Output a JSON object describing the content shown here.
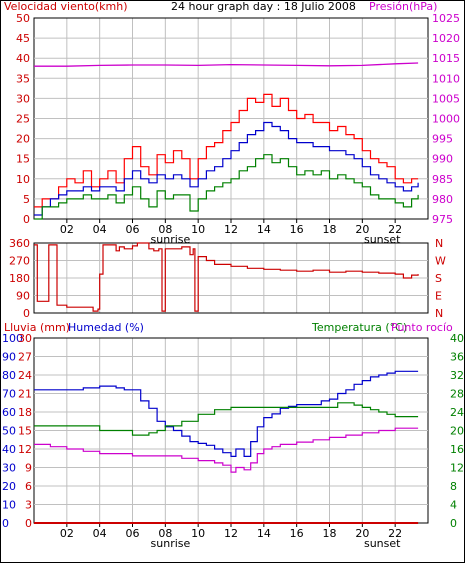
{
  "header": {
    "left_label": "Velocidad viento(kmh)",
    "title": "24 hour graph day : 18 Julio 2008",
    "right_label": "Presión(hPa)"
  },
  "x_axis": {
    "tick_labels": [
      "02",
      "04",
      "06",
      "08",
      "10",
      "12",
      "14",
      "16",
      "18",
      "20",
      "22"
    ],
    "sunrise_label": "sunrise",
    "sunset_label": "sunset"
  },
  "colors": {
    "wind_gust": "#ff0000",
    "wind_avg": "#0000cc",
    "wind_low": "#008000",
    "pressure": "#cc00cc",
    "direction": "#cc0000",
    "humidity": "#0000cc",
    "temperature": "#008000",
    "dewpoint": "#cc00cc",
    "rain": "#cc0000",
    "grid": "#c0c0c0",
    "left_axis": "#cc0000",
    "pressure_axis": "#cc00cc",
    "humidity_axis": "#0000cc",
    "temp_axis": "#008000"
  },
  "chart_data": [
    {
      "type": "line",
      "name": "wind-pressure",
      "x_unit": "hour",
      "x_range": [
        0,
        24
      ],
      "left_axis": {
        "label": "Velocidad viento(kmh)",
        "range": [
          0,
          50
        ],
        "ticks": [
          "0",
          "5",
          "10",
          "15",
          "20",
          "25",
          "30",
          "35",
          "40",
          "45",
          "50"
        ]
      },
      "right_axis": {
        "label": "Presión(hPa)",
        "range": [
          975,
          1025
        ],
        "ticks": [
          "975",
          "980",
          "985",
          "990",
          "995",
          "1000",
          "1005",
          "1010",
          "1015",
          "1020",
          "1025"
        ]
      },
      "grid": true,
      "series": [
        {
          "key": "gust",
          "axis": "left",
          "x": [
            0,
            0.5,
            1,
            1.5,
            2,
            2.5,
            3,
            3.5,
            4,
            4.5,
            5,
            5.5,
            6,
            6.5,
            7,
            7.5,
            8,
            8.5,
            9,
            9.5,
            10,
            10.5,
            11,
            11.5,
            12,
            12.5,
            13,
            13.5,
            14,
            14.5,
            15,
            15.5,
            16,
            16.5,
            17,
            17.5,
            18,
            18.5,
            19,
            19.5,
            20,
            20.5,
            21,
            21.5,
            22,
            22.5,
            23,
            23.4
          ],
          "y": [
            3,
            5,
            5,
            8,
            10,
            9,
            12,
            8,
            10,
            12,
            9,
            15,
            18,
            13,
            11,
            16,
            14,
            17,
            15,
            10,
            15,
            18,
            19,
            22,
            24,
            27,
            30,
            29,
            31,
            28,
            30,
            27,
            25,
            26,
            24,
            24,
            22,
            23,
            21,
            20,
            17,
            15,
            14,
            13,
            10,
            9,
            10,
            10
          ]
        },
        {
          "key": "average",
          "axis": "left",
          "x": [
            0,
            0.5,
            1,
            1.5,
            2,
            2.5,
            3,
            3.5,
            4,
            4.5,
            5,
            5.5,
            6,
            6.5,
            7,
            7.5,
            8,
            8.5,
            9,
            9.5,
            10,
            10.5,
            11,
            11.5,
            12,
            12.5,
            13,
            13.5,
            14,
            14.5,
            15,
            15.5,
            16,
            16.5,
            17,
            17.5,
            18,
            18.5,
            19,
            19.5,
            20,
            20.5,
            21,
            21.5,
            22,
            22.5,
            23,
            23.4
          ],
          "y": [
            1,
            3,
            5,
            6,
            7,
            7,
            8,
            7,
            8,
            8,
            7,
            10,
            12,
            10,
            9,
            11,
            10,
            11,
            10,
            8,
            10,
            12,
            13,
            15,
            17,
            19,
            21,
            22,
            24,
            23,
            22,
            20,
            19,
            19,
            18,
            18,
            17,
            17,
            16,
            15,
            13,
            11,
            10,
            9,
            8,
            7,
            8,
            9
          ]
        },
        {
          "key": "low",
          "axis": "left",
          "x": [
            0,
            0.5,
            1,
            1.5,
            2,
            2.5,
            3,
            3.5,
            4,
            4.5,
            5,
            5.5,
            6,
            6.5,
            7,
            7.5,
            8,
            8.5,
            9,
            9.5,
            10,
            10.5,
            11,
            11.5,
            12,
            12.5,
            13,
            13.5,
            14,
            14.5,
            15,
            15.5,
            16,
            16.5,
            17,
            17.5,
            18,
            18.5,
            19,
            19.5,
            20,
            20.5,
            21,
            21.5,
            22,
            22.5,
            23,
            23.4
          ],
          "y": [
            0,
            3,
            3,
            4,
            5,
            5,
            6,
            5,
            5,
            6,
            4,
            6,
            8,
            5,
            3,
            7,
            5,
            6,
            6,
            2,
            5,
            7,
            8,
            9,
            10,
            12,
            13,
            15,
            16,
            14,
            15,
            13,
            11,
            12,
            11,
            12,
            10,
            11,
            10,
            9,
            8,
            6,
            5,
            5,
            4,
            3,
            5,
            6
          ]
        },
        {
          "key": "pressure",
          "axis": "right",
          "x": [
            0,
            2,
            4,
            6,
            8,
            10,
            12,
            14,
            16,
            18,
            20,
            22,
            23.4
          ],
          "y": [
            1013,
            1013,
            1013.2,
            1013.3,
            1013.3,
            1013.2,
            1013.4,
            1013.3,
            1013.2,
            1013.1,
            1013.2,
            1013.6,
            1013.8
          ]
        }
      ]
    },
    {
      "type": "line",
      "name": "wind-direction",
      "x_unit": "hour",
      "x_range": [
        0,
        24
      ],
      "left_axis": {
        "range": [
          0,
          360
        ],
        "ticks": [
          "0",
          "90",
          "180",
          "270",
          "360"
        ]
      },
      "right_axis": {
        "ticks": [
          "N",
          "E",
          "S",
          "W",
          "N"
        ]
      },
      "grid": true,
      "series": [
        {
          "key": "direction",
          "x": [
            0,
            0.1,
            0.2,
            0.8,
            0.9,
            1.2,
            1.4,
            1.8,
            2,
            3,
            3.6,
            3.8,
            3.9,
            4,
            4.2,
            4.5,
            5,
            5.2,
            5.5,
            6,
            6.3,
            7,
            7.3,
            7.6,
            7.8,
            8,
            8.5,
            9,
            9.5,
            9.7,
            9.8,
            10,
            10.5,
            11,
            12,
            13,
            14,
            15,
            16,
            17,
            18,
            19,
            20,
            21,
            22,
            22.5,
            23,
            23.4
          ],
          "y": [
            350,
            350,
            60,
            60,
            350,
            350,
            40,
            40,
            30,
            30,
            10,
            10,
            20,
            200,
            350,
            350,
            320,
            340,
            330,
            345,
            360,
            330,
            320,
            330,
            10,
            330,
            330,
            340,
            300,
            330,
            10,
            290,
            270,
            250,
            240,
            230,
            225,
            220,
            215,
            220,
            210,
            215,
            210,
            205,
            200,
            180,
            195,
            200
          ]
        }
      ]
    },
    {
      "type": "line",
      "name": "rain-humidity-temperature",
      "x_unit": "hour",
      "x_range": [
        0,
        24
      ],
      "axes": {
        "rain": {
          "label": "Lluvia (mm)",
          "range": [
            0,
            30
          ],
          "ticks": [
            "0",
            "3",
            "6",
            "9",
            "12",
            "15",
            "18",
            "21",
            "24",
            "27",
            "30"
          ]
        },
        "humidity": {
          "label": "Humedad (%)",
          "range": [
            0,
            100
          ],
          "ticks": [
            "0",
            "10",
            "20",
            "30",
            "40",
            "50",
            "60",
            "70",
            "80",
            "90",
            "100"
          ]
        },
        "temperature": {
          "label": "Temperatura (°C)",
          "range": [
            0,
            40
          ],
          "ticks": [
            "0",
            "4",
            "8",
            "12",
            "16",
            "20",
            "24",
            "28",
            "32",
            "36",
            "40"
          ]
        },
        "dewpoint": {
          "label": "Punto rocío"
        }
      },
      "grid": true,
      "series": [
        {
          "key": "humidity",
          "axis": "humidity",
          "x": [
            0,
            1,
            2,
            3,
            4,
            4.5,
            5,
            5.5,
            6,
            6.5,
            7,
            7.5,
            8,
            8.5,
            9,
            9.5,
            10,
            10.5,
            11,
            11.5,
            12,
            12.3,
            12.8,
            13.2,
            13.6,
            14,
            14.5,
            15,
            15.5,
            16,
            16.5,
            17,
            17.5,
            18,
            18.5,
            19,
            19.5,
            20,
            20.5,
            21,
            21.5,
            22,
            22.5,
            23,
            23.4
          ],
          "y": [
            72,
            72,
            72,
            73,
            74,
            74,
            73,
            72,
            72,
            66,
            62,
            55,
            52,
            50,
            47,
            44,
            43,
            42,
            40,
            38,
            36,
            40,
            36,
            44,
            52,
            57,
            59,
            62,
            63,
            64,
            64,
            64,
            66,
            67,
            70,
            72,
            75,
            77,
            79,
            80,
            81,
            82,
            82,
            82,
            82
          ]
        },
        {
          "key": "temperature",
          "axis": "temperature",
          "x": [
            0,
            1,
            2,
            3,
            4,
            5,
            6,
            7,
            7.5,
            8,
            9,
            10,
            11,
            12,
            13,
            14,
            15,
            16,
            17,
            18,
            18.5,
            19,
            19.5,
            20,
            20.5,
            21,
            21.5,
            22,
            22.5,
            23,
            23.4
          ],
          "y": [
            21,
            21,
            21,
            21,
            20,
            20,
            19,
            19.5,
            20,
            21,
            22,
            23.5,
            24.5,
            25,
            25,
            25,
            25,
            25,
            25,
            25,
            26,
            26,
            25.5,
            25,
            24.5,
            24,
            23.5,
            23,
            23,
            23,
            23
          ]
        },
        {
          "key": "dewpoint",
          "axis": "temperature",
          "x": [
            0,
            1,
            2,
            3,
            4,
            5,
            6,
            7,
            8,
            9,
            10,
            11,
            11.5,
            12,
            12.3,
            12.8,
            13.2,
            13.6,
            14,
            14.5,
            15,
            16,
            17,
            18,
            19,
            20,
            21,
            22,
            23,
            23.4
          ],
          "y": [
            17,
            16.5,
            16,
            15.5,
            15,
            15,
            14.5,
            14.5,
            14.5,
            14,
            13.5,
            13,
            12.5,
            11,
            12,
            11.5,
            13,
            15,
            16,
            16.5,
            17,
            17.5,
            18,
            18.5,
            19,
            19.5,
            20,
            20.5,
            20.5,
            20.5
          ]
        },
        {
          "key": "rain",
          "axis": "rain",
          "x": [
            0,
            23.4
          ],
          "y": [
            0,
            0
          ]
        }
      ]
    }
  ],
  "panel3_labels": {
    "rain": "Lluvia (mm)",
    "humidity": "Humedad (%)",
    "temperature": "Temperatura (°C)",
    "dewpoint": "Punto rocío"
  }
}
